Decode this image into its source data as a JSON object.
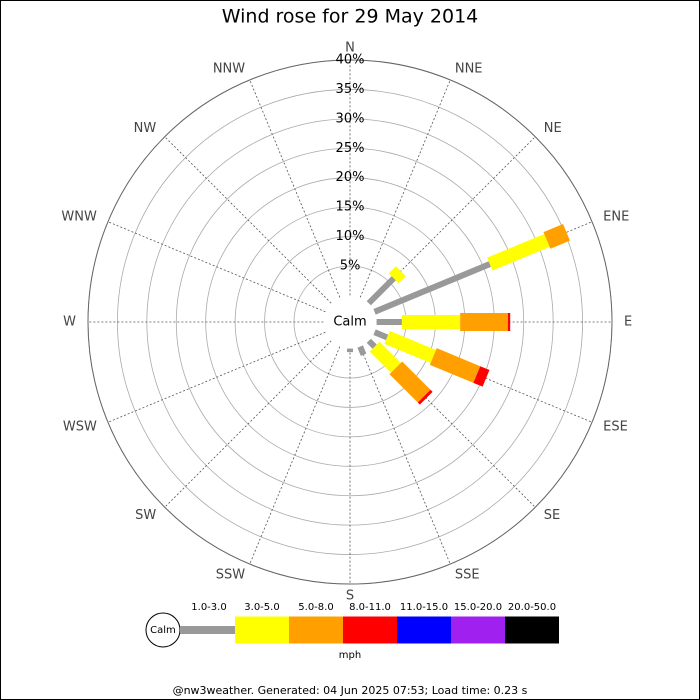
{
  "chart_data": {
    "type": "windrose",
    "title": "Wind rose for 29 May 2014",
    "categories": [
      "N",
      "NNE",
      "NE",
      "ENE",
      "E",
      "ESE",
      "SE",
      "SSE",
      "S",
      "SSW",
      "SW",
      "WSW",
      "W",
      "WNW",
      "NW",
      "NNW"
    ],
    "calm_label": "Calm",
    "rlim": [
      0,
      40
    ],
    "rticks": [
      {
        "value": 5,
        "label": "5%"
      },
      {
        "value": 10,
        "label": "10%"
      },
      {
        "value": 15,
        "label": "15%"
      },
      {
        "value": 20,
        "label": "20%"
      },
      {
        "value": 25,
        "label": "25%"
      },
      {
        "value": 30,
        "label": "30%"
      },
      {
        "value": 35,
        "label": "35%"
      },
      {
        "value": 40,
        "label": "40%"
      }
    ],
    "series": [
      {
        "name": "1.0-3.0",
        "color": "#999999",
        "values": [
          0,
          0,
          6,
          21.2,
          4.3,
          2.3,
          1.4,
          1.5,
          0.6,
          0,
          0,
          0,
          0,
          0,
          0,
          0
        ]
      },
      {
        "name": "3.0-5.0",
        "color": "#ffff00",
        "values": [
          0,
          0,
          1.7,
          10.5,
          9.9,
          8.5,
          5.1,
          0,
          0,
          0,
          0,
          0,
          0,
          0,
          0,
          0
        ]
      },
      {
        "name": "5.0-8.0",
        "color": "#ffa000",
        "values": [
          0,
          0,
          0,
          3.6,
          8.1,
          8,
          6.8,
          0,
          0,
          0,
          0,
          0,
          0,
          0,
          0,
          0
        ]
      },
      {
        "name": "8.0-11.0",
        "color": "#ff0000",
        "values": [
          0,
          0,
          0,
          0,
          0.4,
          1.7,
          0.5,
          0,
          0,
          0,
          0,
          0,
          0,
          0,
          0,
          0
        ]
      },
      {
        "name": "11.0-15.0",
        "color": "#0000ff",
        "values": [
          0,
          0,
          0,
          0,
          0,
          0,
          0,
          0,
          0,
          0,
          0,
          0,
          0,
          0,
          0,
          0
        ]
      },
      {
        "name": "15.0-20.0",
        "color": "#a020f0",
        "values": [
          0,
          0,
          0,
          0,
          0,
          0,
          0,
          0,
          0,
          0,
          0,
          0,
          0,
          0,
          0,
          0
        ]
      },
      {
        "name": "20.0-50.0",
        "color": "#000000",
        "values": [
          0,
          0,
          0,
          0,
          0,
          0,
          0,
          0,
          0,
          0,
          0,
          0,
          0,
          0,
          0,
          0
        ]
      }
    ],
    "legend_title": "mph",
    "footer": "@nw3weather. Generated: 04 Jun 2025 07:53; Load time: 0.23 s"
  }
}
